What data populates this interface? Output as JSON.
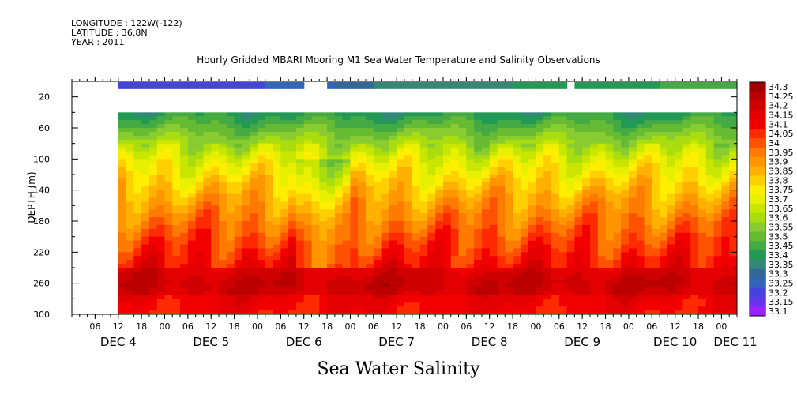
{
  "header": {
    "longitude": "LONGITUDE : 122W(-122)",
    "latitude": "LATITUDE : 36.8N",
    "year": "YEAR : 2011"
  },
  "title": "Hourly Gridded MBARI Mooring M1 Sea Water Temperature and Salinity Observations",
  "footer": "Sea Water Salinity",
  "chart_data": {
    "type": "heatmap",
    "title": "Hourly Gridded MBARI Mooring M1 Sea Water Temperature and Salinity Observations",
    "xlabel": "",
    "ylabel": "DEPTH (m)",
    "ylim": [
      300,
      0
    ],
    "y_ticks": [
      20,
      60,
      100,
      140,
      180,
      220,
      260,
      300
    ],
    "x_hour_ticks": [
      "06",
      "12",
      "18",
      "00",
      "06",
      "12",
      "18",
      "00",
      "06",
      "12",
      "18",
      "00",
      "06",
      "12",
      "18",
      "00",
      "06",
      "12",
      "18",
      "00",
      "06",
      "12",
      "18",
      "00",
      "06",
      "12",
      "18",
      "00"
    ],
    "x_day_labels": [
      "DEC  4",
      "DEC  5",
      "DEC  6",
      "DEC  7",
      "DEC  8",
      "DEC  9",
      "DEC 10",
      "DEC 11"
    ],
    "x_range_hours": [
      "2011-12-04 00:00",
      "2011-12-11 04:00"
    ],
    "colorbar_levels": [
      "34.3",
      "34.25",
      "34.2",
      "34.15",
      "34.1",
      "34.05",
      "34",
      "33.95",
      "33.9",
      "33.85",
      "33.8",
      "33.75",
      "33.7",
      "33.65",
      "33.6",
      "33.55",
      "33.5",
      "33.45",
      "33.4",
      "33.35",
      "33.3",
      "33.25",
      "33.2",
      "33.15",
      "33.1"
    ],
    "colorbar_colors": [
      "#a00000",
      "#bb0000",
      "#d00000",
      "#e50000",
      "#f20000",
      "#ff2a00",
      "#ff5200",
      "#ff7a00",
      "#ff9600",
      "#ffb000",
      "#ffcf00",
      "#ffee00",
      "#e6f000",
      "#c8e600",
      "#aadd10",
      "#88cc30",
      "#66bb33",
      "#44aa44",
      "#229955",
      "#338877",
      "#336699",
      "#3366bb",
      "#4444dd",
      "#6633ee",
      "#9922ff",
      "#cc00ff"
    ],
    "surface_band": {
      "depth": 10,
      "note_values": "approx salinity ~33.2 at start rising to ~33.4",
      "gaps_hours": [
        [
          59,
          66
        ],
        [
          127,
          129
        ]
      ]
    },
    "data_gaps_hours_deep": [
      [
        59,
        60
      ]
    ],
    "observed_depth_range_m": [
      40,
      300
    ],
    "layers_by_depth_m": {
      "40": 33.42,
      "60": 33.52,
      "100": 33.72,
      "140": 33.86,
      "180": 33.98,
      "220": 34.08,
      "260": 34.18,
      "300": 34.12
    },
    "grid": false
  }
}
